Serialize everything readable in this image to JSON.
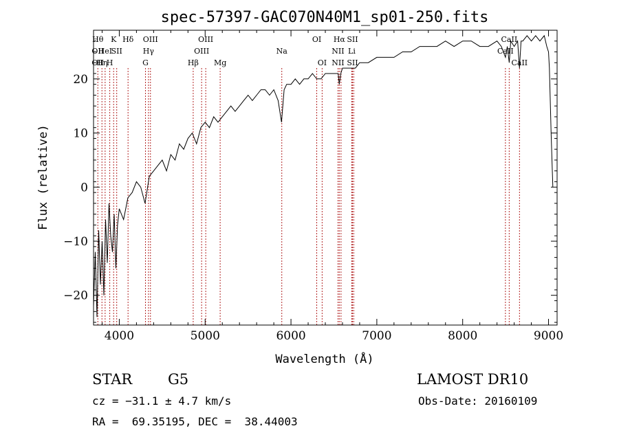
{
  "chart_data": {
    "type": "line",
    "title": "spec-57397-GAC070N40M1_sp01-250.fits",
    "xlabel": "Wavelength (Å)",
    "ylabel": "Flux (relative)",
    "xlim": [
      3700,
      9100
    ],
    "ylim": [
      -25.5,
      29
    ],
    "xticks": [
      4000,
      5000,
      6000,
      7000,
      8000,
      9000
    ],
    "yticks": [
      -20,
      -10,
      0,
      10,
      20
    ],
    "grid": false,
    "line_color": "#000000",
    "marker_color": "#b22222",
    "series": [
      {
        "x": [
          3700,
          3720,
          3740,
          3760,
          3780,
          3800,
          3820,
          3840,
          3860,
          3880,
          3900,
          3920,
          3940,
          3960,
          3980,
          4000,
          4050,
          4100,
          4150,
          4200,
          4250,
          4300,
          4350,
          4400,
          4450,
          4500,
          4550,
          4600,
          4650,
          4700,
          4750,
          4800,
          4850,
          4900,
          4950,
          5000,
          5050,
          5100,
          5150,
          5200,
          5250,
          5300,
          5350,
          5400,
          5450,
          5500,
          5550,
          5600,
          5650,
          5700,
          5750,
          5800,
          5850,
          5890,
          5920,
          5950,
          6000,
          6050,
          6100,
          6150,
          6200,
          6250,
          6300,
          6350,
          6400,
          6450,
          6500,
          6550,
          6563,
          6580,
          6600,
          6650,
          6700,
          6750,
          6800,
          6900,
          7000,
          7100,
          7200,
          7300,
          7400,
          7500,
          7600,
          7700,
          7800,
          7900,
          8000,
          8100,
          8200,
          8300,
          8400,
          8450,
          8498,
          8520,
          8542,
          8560,
          8600,
          8640,
          8662,
          8680,
          8700,
          8750,
          8800,
          8850,
          8900,
          8950,
          8980,
          9000,
          9010,
          9030,
          9050
        ],
        "y": [
          -22,
          -12,
          -24,
          -8,
          -18,
          -10,
          -20,
          -6,
          -14,
          -3,
          -9,
          -12,
          -5,
          -15,
          -7,
          -4,
          -6,
          -2,
          -1,
          1,
          0,
          -3,
          2,
          3,
          4,
          5,
          3,
          6,
          5,
          8,
          7,
          9,
          10,
          8,
          11,
          12,
          11,
          13,
          12,
          13,
          14,
          15,
          14,
          15,
          16,
          17,
          16,
          17,
          18,
          18,
          17,
          18,
          16,
          12,
          18,
          19,
          19,
          20,
          19,
          20,
          20,
          21,
          20,
          20,
          21,
          21,
          21,
          21,
          19,
          21,
          22,
          22,
          22,
          22,
          23,
          23,
          24,
          24,
          24,
          25,
          25,
          26,
          26,
          26,
          27,
          26,
          27,
          27,
          26,
          26,
          27,
          26,
          24,
          26,
          23,
          27,
          26,
          27,
          22,
          27,
          27,
          28,
          27,
          28,
          27,
          28,
          26,
          25,
          22,
          10,
          0
        ]
      }
    ],
    "line_markers": [
      {
        "x": 3750,
        "top": "Hθ",
        "mid": "OII",
        "bot": "OII"
      },
      {
        "x": 3798,
        "top": "",
        "mid": "",
        "bot": "Hη"
      },
      {
        "x": 3835,
        "top": "",
        "mid": "HeI",
        "bot": ""
      },
      {
        "x": 3889,
        "top": "",
        "mid": "",
        "bot": "H"
      },
      {
        "x": 3934,
        "top": "K",
        "mid": "",
        "bot": ""
      },
      {
        "x": 3970,
        "top": "",
        "mid": "SII",
        "bot": ""
      },
      {
        "x": 4102,
        "top": "Hδ",
        "mid": "",
        "bot": ""
      },
      {
        "x": 4305,
        "top": "",
        "mid": "",
        "bot": "G"
      },
      {
        "x": 4340,
        "top": "",
        "mid": "Hγ",
        "bot": ""
      },
      {
        "x": 4363,
        "top": "OIII",
        "mid": "",
        "bot": ""
      },
      {
        "x": 4861,
        "top": "",
        "mid": "",
        "bot": "Hβ"
      },
      {
        "x": 4959,
        "top": "",
        "mid": "OIII",
        "bot": ""
      },
      {
        "x": 5007,
        "top": "OIII",
        "mid": "",
        "bot": ""
      },
      {
        "x": 5175,
        "top": "",
        "mid": "",
        "bot": "Mg"
      },
      {
        "x": 5893,
        "top": "",
        "mid": "Na",
        "bot": ""
      },
      {
        "x": 6300,
        "top": "OI",
        "mid": "",
        "bot": ""
      },
      {
        "x": 6363,
        "top": "",
        "mid": "",
        "bot": "OI"
      },
      {
        "x": 6548,
        "top": "",
        "mid": "NII",
        "bot": "NII"
      },
      {
        "x": 6563,
        "top": "Hα",
        "mid": "",
        "bot": ""
      },
      {
        "x": 6583,
        "top": "",
        "mid": "",
        "bot": ""
      },
      {
        "x": 6708,
        "top": "",
        "mid": "Li",
        "bot": ""
      },
      {
        "x": 6716,
        "top": "SII",
        "mid": "",
        "bot": "SII"
      },
      {
        "x": 6731,
        "top": "",
        "mid": "",
        "bot": ""
      },
      {
        "x": 8498,
        "top": "",
        "mid": "CaII",
        "bot": ""
      },
      {
        "x": 8542,
        "top": "CaII",
        "mid": "",
        "bot": ""
      },
      {
        "x": 8662,
        "top": "",
        "mid": "",
        "bot": "CaII"
      }
    ]
  },
  "info": {
    "object_type": "STAR",
    "subclass": "G5",
    "survey": "LAMOST DR10",
    "cz": "cz = −31.1 ± 4.7 km/s",
    "obs_date": "Obs-Date: 20160109",
    "coords": "RA =  69.35195, DEC =  38.44003"
  }
}
